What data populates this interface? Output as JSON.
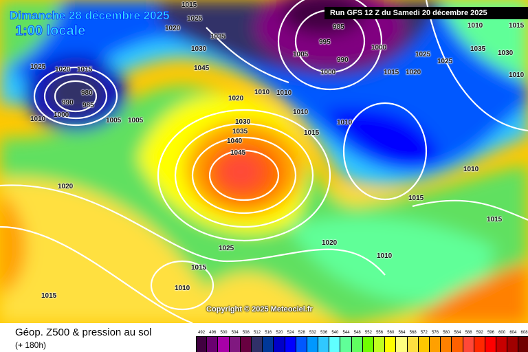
{
  "header": {
    "date": "Dimanche 28 décembre 2025",
    "time": "1:00 locale",
    "run": "Run GFS 12 Z du Samedi 20 décembre 2025"
  },
  "copyright": "Copyright © 2025 Meteociel.fr",
  "footer": {
    "title": "Géop. Z500 & pression au sol",
    "lead": "(+ 180h)"
  },
  "legend": {
    "values": [
      "492",
      "496",
      "500",
      "504",
      "508",
      "512",
      "516",
      "520",
      "524",
      "528",
      "532",
      "536",
      "540",
      "544",
      "548",
      "552",
      "556",
      "560",
      "564",
      "568",
      "572",
      "576",
      "580",
      "584",
      "588",
      "592",
      "596",
      "600",
      "604",
      "608",
      "612"
    ],
    "colors": [
      "#400040",
      "#6a0070",
      "#a800a8",
      "#801880",
      "#680040",
      "#303068",
      "#003898",
      "#0000c8",
      "#0000ff",
      "#0058ff",
      "#0098ff",
      "#30c8ff",
      "#60ffff",
      "#60ff98",
      "#60ff60",
      "#70ff00",
      "#c0ff20",
      "#ffff00",
      "#ffff80",
      "#ffe040",
      "#ffc800",
      "#ffa000",
      "#ff8000",
      "#ff6000",
      "#ff4838",
      "#ff2800",
      "#ff0000",
      "#c80000",
      "#a00000",
      "#700000",
      "#500000",
      "#000000"
    ]
  },
  "pressure_labels": [
    "1015",
    "1020",
    "1025",
    "1035",
    "1030",
    "1045",
    "1025",
    "1020",
    "1015",
    "990",
    "980",
    "985",
    "1000",
    "1005",
    "1010",
    "1005",
    "1000",
    "995",
    "990",
    "985",
    "1000",
    "1005",
    "1010",
    "1015",
    "1020",
    "1025",
    "1030",
    "1035",
    "1040",
    "1045",
    "1010",
    "1015",
    "1010",
    "1020",
    "1010",
    "1035",
    "1030",
    "1025",
    "1020",
    "1015",
    "1010",
    "1010",
    "1015",
    "1020",
    "1025",
    "1015",
    "1010",
    "1015",
    "1010",
    "1010",
    "1015"
  ],
  "colors": {
    "isobar": "#ffffff",
    "title": "#33e0ff"
  }
}
